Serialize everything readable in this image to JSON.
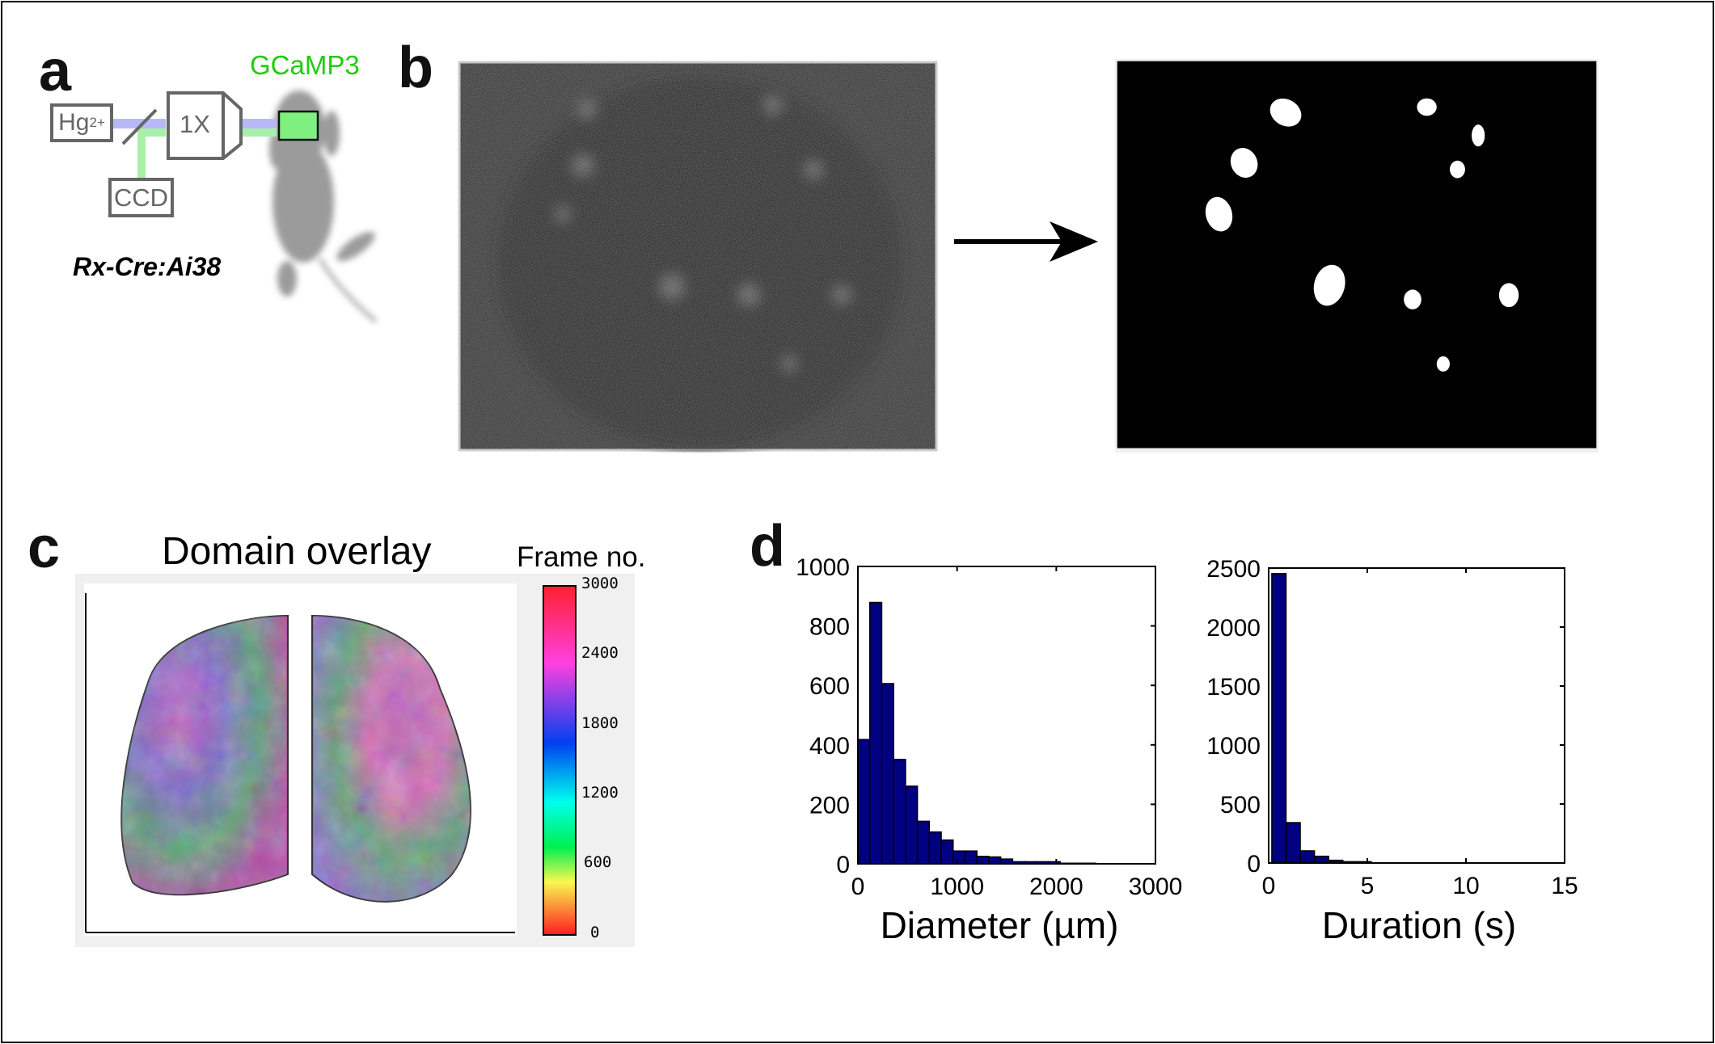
{
  "panels": {
    "a": {
      "label": "a",
      "light_source": "Hg",
      "light_source_sup": "2+",
      "objective": "1X",
      "camera": "CCD",
      "indicator": "GCaMP3",
      "genotype": "Rx-Cre:Ai38",
      "colors": {
        "excitation": "#b8b8f8",
        "emission": "#a8f0a8",
        "indicator_text": "#22cc11"
      }
    },
    "b": {
      "label": "b",
      "arrow_icon": "arrow-right-icon"
    },
    "c": {
      "label": "c",
      "title": "Domain overlay",
      "colorbar_label": "Frame no.",
      "colorbar_ticks": [
        "3000",
        "2400",
        "1800",
        "1200",
        "600",
        "0"
      ],
      "colormap": "hsv"
    },
    "d": {
      "label": "d"
    }
  },
  "chart_data": [
    {
      "type": "bar",
      "subtype": "histogram",
      "xlabel": "Diameter (µm)",
      "ylabel": "",
      "xlim": [
        0,
        3000
      ],
      "ylim": [
        0,
        1000
      ],
      "xticks": [
        "0",
        "1000",
        "2000",
        "3000"
      ],
      "yticks": [
        "0",
        "200",
        "400",
        "600",
        "800",
        "1000"
      ],
      "bin_width": 120,
      "bin_centers": [
        60,
        180,
        300,
        420,
        540,
        660,
        780,
        900,
        1020,
        1140,
        1260,
        1380,
        1500,
        1620,
        1740,
        1860,
        1980,
        2100,
        2220,
        2340
      ],
      "counts": [
        418,
        879,
        606,
        351,
        261,
        143,
        107,
        80,
        43,
        43,
        25,
        23,
        16,
        7,
        7,
        7,
        7,
        2,
        2,
        2
      ],
      "color": "#000080",
      "grid": false
    },
    {
      "type": "bar",
      "subtype": "histogram",
      "xlabel": "Duration (s)",
      "ylabel": "",
      "xlim": [
        0,
        15
      ],
      "ylim": [
        0,
        2500
      ],
      "xticks": [
        "0",
        "5",
        "10",
        "15"
      ],
      "yticks": [
        "0",
        "500",
        "1000",
        "1500",
        "2000",
        "2500"
      ],
      "bin_width": 0.72,
      "bin_centers": [
        0.52,
        1.24,
        1.96,
        2.68,
        3.4,
        4.12,
        4.84
      ],
      "counts": [
        2453,
        342,
        103,
        57,
        23,
        11,
        11
      ],
      "color": "#000080",
      "grid": false
    }
  ]
}
